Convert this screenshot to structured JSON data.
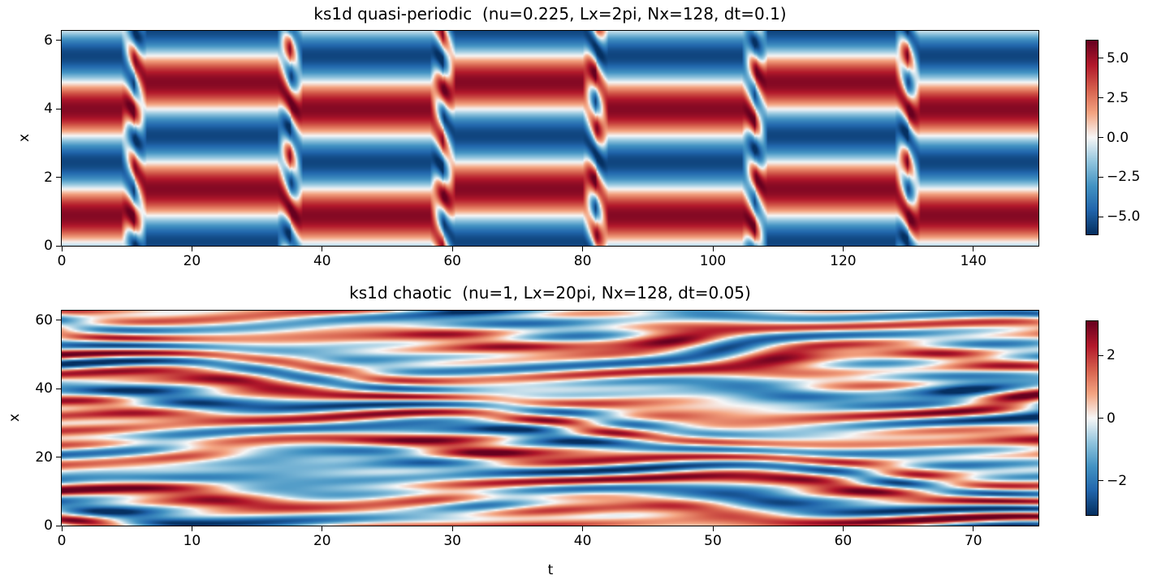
{
  "chart_data": [
    {
      "type": "heatmap",
      "title": "ks1d quasi-periodic  (nu=0.225, Lx=2pi, Nx=128, dt=0.1)",
      "xlabel": "",
      "ylabel": "x",
      "xlim": [
        0,
        150
      ],
      "ylim": [
        0,
        6.283
      ],
      "xticks": [
        0,
        20,
        40,
        60,
        80,
        100,
        120,
        140
      ],
      "yticks": [
        0,
        2,
        4,
        6
      ],
      "colorbar": {
        "vmin": -6.1,
        "vmax": 6.1,
        "ticks": [
          "5.0",
          "2.5",
          "0.0",
          "−2.5",
          "−5.0"
        ],
        "tick_values": [
          5.0,
          2.5,
          0.0,
          -2.5,
          -5.0
        ]
      },
      "colormap": "RdBu_r",
      "pattern": {
        "kind": "quasi-periodic",
        "transitions_t": [
          11,
          35,
          58.5,
          82,
          106.5,
          130
        ],
        "mode_k": 2,
        "amplitude": 5.5
      }
    },
    {
      "type": "heatmap",
      "title": "ks1d chaotic  (nu=1, Lx=20pi, Nx=128, dt=0.05)",
      "xlabel": "t",
      "ylabel": "x",
      "xlim": [
        0,
        75
      ],
      "ylim": [
        0,
        62.83
      ],
      "xticks": [
        0,
        10,
        20,
        30,
        40,
        50,
        60,
        70
      ],
      "yticks": [
        0,
        20,
        40,
        60
      ],
      "colorbar": {
        "vmin": -3.1,
        "vmax": 3.1,
        "ticks": [
          "2",
          "0",
          "−2"
        ],
        "tick_values": [
          2,
          0,
          -2
        ]
      },
      "colormap": "RdBu_r",
      "pattern": {
        "kind": "chaotic",
        "amplitude": 2.6
      }
    }
  ]
}
